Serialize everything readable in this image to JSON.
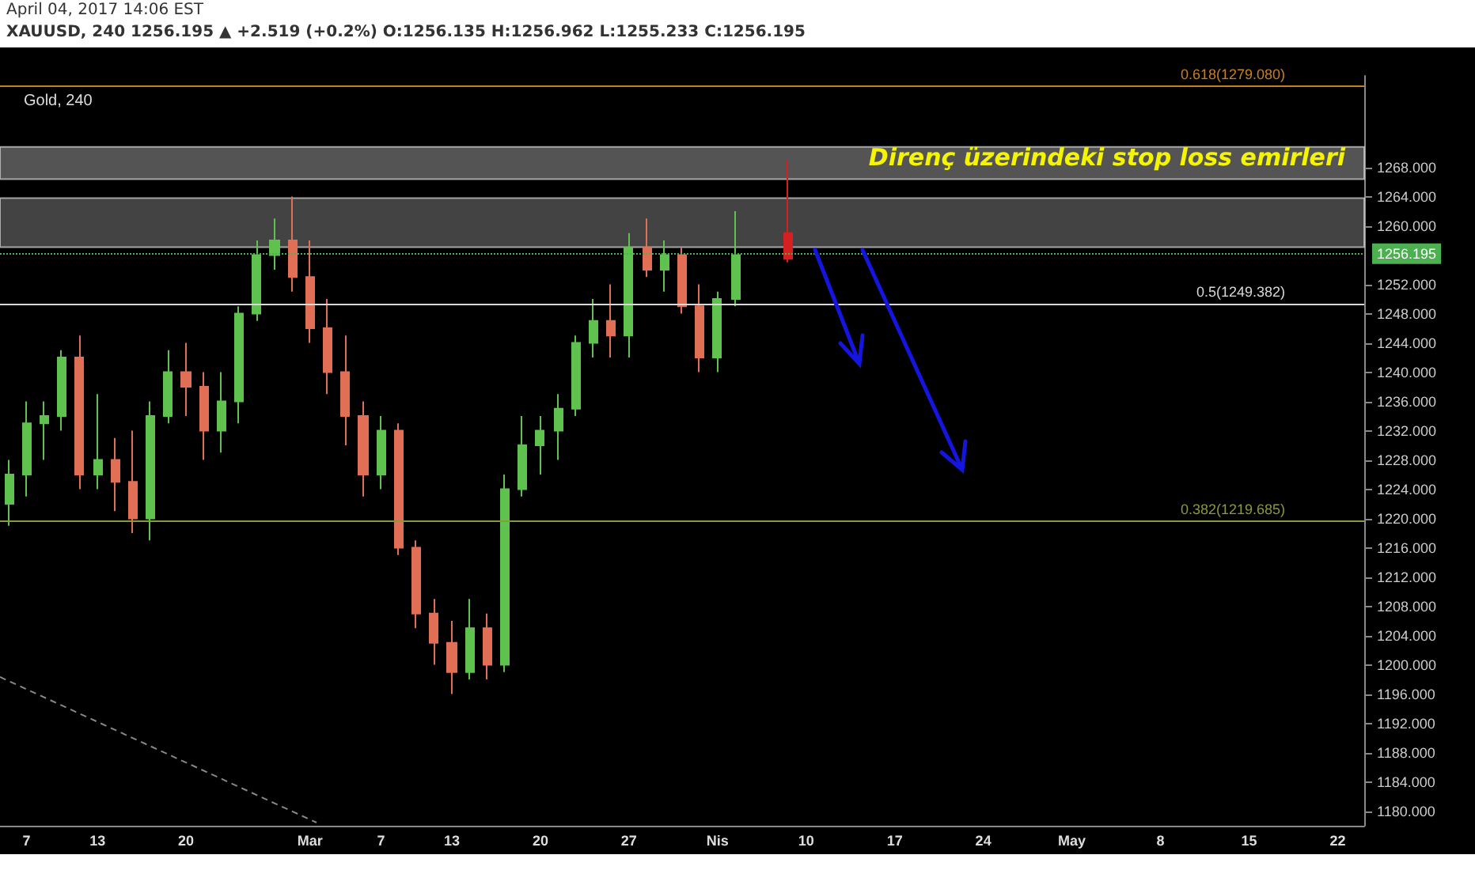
{
  "chart_data": {
    "type": "candlestick",
    "title": "Gold, 240",
    "subtitle": "XAUUSD, 240  1256.195 ▲ +2.519 (+0.2%)  O:1256.135  H:1256.962  L:1255.233  C:1256.195",
    "annotations": [
      "April 04, 2017 14:06 EST",
      "Direnç üzerindeki stop loss emirleri"
    ],
    "categories": [
      null,
      "7",
      null,
      null,
      null,
      "13",
      null,
      null,
      null,
      null,
      "20",
      null,
      null,
      null,
      null,
      null,
      null,
      "Mar",
      null,
      null,
      null,
      "7",
      null,
      null,
      null,
      "13",
      null,
      null,
      null,
      null,
      "20",
      null,
      null,
      null,
      null,
      "27",
      null,
      null,
      null,
      null,
      "Nis",
      null,
      null,
      null,
      null,
      "10",
      null,
      null,
      null,
      null,
      "17",
      null,
      null,
      null,
      null,
      "24",
      null,
      null,
      null,
      null,
      "May",
      null,
      null,
      null,
      null,
      "8",
      null,
      null,
      null,
      null,
      "15",
      null,
      null,
      null,
      null,
      "22",
      null
    ],
    "ohlc": [
      [
        1222,
        1228,
        1219,
        1226
      ],
      [
        1226,
        1236,
        1223,
        1233
      ],
      [
        1233,
        1236,
        1228,
        1234
      ],
      [
        1234,
        1243,
        1232,
        1242
      ],
      [
        1242,
        1245,
        1224,
        1226
      ],
      [
        1226,
        1237,
        1224,
        1228
      ],
      [
        1228,
        1231,
        1221,
        1225
      ],
      [
        1225,
        1232,
        1218,
        1220
      ],
      [
        1220,
        1236,
        1217,
        1234
      ],
      [
        1234,
        1243,
        1233,
        1240
      ],
      [
        1240,
        1244,
        1234,
        1238
      ],
      [
        1238,
        1240,
        1228,
        1232
      ],
      [
        1232,
        1240,
        1229,
        1236
      ],
      [
        1236,
        1249,
        1233,
        1248
      ],
      [
        1248,
        1258,
        1247,
        1256
      ],
      [
        1256,
        1261,
        1254,
        1258
      ],
      [
        1258,
        1264,
        1251,
        1253
      ],
      [
        1253,
        1258,
        1244,
        1246
      ],
      [
        1246,
        1250,
        1237,
        1240
      ],
      [
        1240,
        1245,
        1230,
        1234
      ],
      [
        1234,
        1236,
        1223,
        1226
      ],
      [
        1226,
        1234,
        1224,
        1232
      ],
      [
        1232,
        1233,
        1215,
        1216
      ],
      [
        1216,
        1217,
        1205,
        1207
      ],
      [
        1207,
        1209,
        1200,
        1203
      ],
      [
        1203,
        1206,
        1196,
        1199
      ],
      [
        1199,
        1209,
        1198,
        1205
      ],
      [
        1205,
        1207,
        1198,
        1200
      ],
      [
        1200,
        1226,
        1199,
        1224
      ],
      [
        1224,
        1234,
        1223,
        1230
      ],
      [
        1230,
        1234,
        1226,
        1232
      ],
      [
        1232,
        1237,
        1228,
        1235
      ],
      [
        1235,
        1245,
        1234,
        1244
      ],
      [
        1244,
        1250,
        1242,
        1247
      ],
      [
        1247,
        1252,
        1242,
        1245
      ],
      [
        1245,
        1259,
        1242,
        1257
      ],
      [
        1257,
        1261,
        1253,
        1254
      ],
      [
        1254,
        1258,
        1251,
        1256
      ],
      [
        1256,
        1257,
        1248,
        1249
      ],
      [
        1249,
        1252,
        1240,
        1242
      ],
      [
        1242,
        1251,
        1240,
        1250
      ],
      [
        1250,
        1262,
        1249,
        1256
      ],
      null,
      null,
      [
        1259,
        1269,
        1255,
        1255.5
      ],
      null,
      null,
      null,
      null,
      null,
      null,
      null,
      null,
      null,
      null,
      null,
      null,
      null,
      null,
      null,
      null,
      null,
      null,
      null,
      null,
      null,
      null,
      null,
      null,
      null,
      null,
      null,
      null,
      null,
      null,
      null,
      null
    ],
    "colors": [
      "#5fc24f",
      "#5fc24f",
      "#5fc24f",
      "#5fc24f",
      "#e06f55",
      "#5fc24f",
      "#e06f55",
      "#e06f55",
      "#5fc24f",
      "#5fc24f",
      "#e06f55",
      "#e06f55",
      "#5fc24f",
      "#5fc24f",
      "#5fc24f",
      "#5fc24f",
      "#e06f55",
      "#e06f55",
      "#e06f55",
      "#e06f55",
      "#e06f55",
      "#5fc24f",
      "#e06f55",
      "#e06f55",
      "#e06f55",
      "#e06f55",
      "#5fc24f",
      "#e06f55",
      "#5fc24f",
      "#5fc24f",
      "#5fc24f",
      "#5fc24f",
      "#5fc24f",
      "#5fc24f",
      "#e06f55",
      "#5fc24f",
      "#e06f55",
      "#5fc24f",
      "#e06f55",
      "#e06f55",
      "#5fc24f",
      "#5fc24f",
      null,
      null,
      "#d42020",
      null,
      null,
      null,
      null,
      null,
      null,
      null,
      null,
      null,
      null,
      null,
      null,
      null,
      null,
      null,
      null,
      null,
      null,
      null,
      null,
      null,
      null,
      null,
      null,
      null,
      null,
      null,
      null,
      null,
      null,
      null,
      null
    ],
    "ylim": [
      1178,
      1280.5
    ],
    "yticks": [
      {
        "value": 1180,
        "label": "1180.000"
      },
      {
        "value": 1184,
        "label": "1184.000"
      },
      {
        "value": 1188,
        "label": "1188.000"
      },
      {
        "value": 1192,
        "label": "1192.000"
      },
      {
        "value": 1196,
        "label": "1196.000"
      },
      {
        "value": 1200,
        "label": "1200.000"
      },
      {
        "value": 1204,
        "label": "1204.000"
      },
      {
        "value": 1208,
        "label": "1208.000"
      },
      {
        "value": 1212,
        "label": "1212.000"
      },
      {
        "value": 1216,
        "label": "1216.000"
      },
      {
        "value": 1220,
        "label": "1220.000"
      },
      {
        "value": 1224,
        "label": "1224.000"
      },
      {
        "value": 1228,
        "label": "1228.000"
      },
      {
        "value": 1232,
        "label": "1232.000"
      },
      {
        "value": 1236,
        "label": "1236.000"
      },
      {
        "value": 1240,
        "label": "1240.000"
      },
      {
        "value": 1244,
        "label": "1244.000"
      },
      {
        "value": 1248,
        "label": "1248.000"
      },
      {
        "value": 1252,
        "label": "1252.000"
      },
      {
        "value": 1260,
        "label": "1260.000"
      },
      {
        "value": 1264,
        "label": "1264.000"
      },
      {
        "value": 1268,
        "label": "1268.000"
      }
    ],
    "ref_lines": [
      {
        "axis": "y",
        "value": 1279.08,
        "label": "0.618(1279.080)",
        "color": "#c8801e",
        "line_style": "solid"
      },
      {
        "axis": "y",
        "value": 1249.382,
        "label": "0.5(1249.382)",
        "color": "#d8d8d8",
        "line_style": "solid"
      },
      {
        "axis": "y",
        "value": 1219.685,
        "label": "0.382(1219.685)",
        "color": "#8a9a3a",
        "line_style": "solid"
      },
      {
        "axis": "y",
        "value": 1256.195,
        "label": "1256.195",
        "color": "#4caf50",
        "line_style": "dotted"
      }
    ],
    "bands": [
      {
        "axis": "y",
        "from": 1257.1,
        "to": 1263.8,
        "color": "#5a5a5a"
      },
      {
        "axis": "y",
        "from": 1266.4,
        "to": 1270.8,
        "color": "#707070"
      }
    ],
    "grid": false
  }
}
